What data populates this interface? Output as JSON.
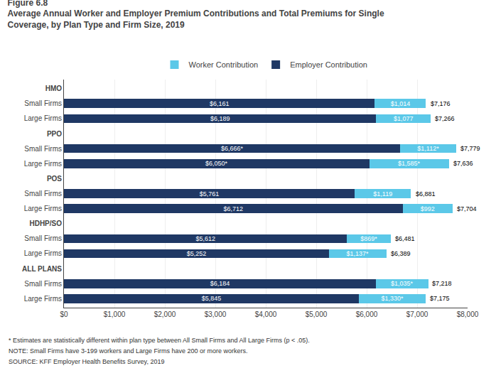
{
  "chart_data": {
    "type": "bar",
    "orientation": "horizontal",
    "stacked": true,
    "title": "Figure 6.8",
    "subtitle": "Average Annual Worker and Employer Premium Contributions and Total Premiums for Single\nCoverage, by Plan Type and Firm Size, 2019",
    "categories": [
      "HMO",
      "Small Firms",
      "Large Firms",
      "PPO",
      "Small Firms",
      "Large Firms",
      "POS",
      "Small Firms",
      "Large Firms",
      "HDHP/SO",
      "Small Firms",
      "Large Firms",
      "ALL PLANS",
      "Small Firms",
      "Large Firms"
    ],
    "series": [
      {
        "name": "Employer Contribution",
        "color": "#1F3864",
        "values": [
          null,
          6161,
          6189,
          null,
          6666,
          6050,
          null,
          5761,
          6712,
          null,
          5612,
          5252,
          null,
          6184,
          5845
        ],
        "value_labels": [
          null,
          "$6,161",
          "$6,189",
          null,
          "$6,666*",
          "$6,050*",
          null,
          "$5,761",
          "$6,712",
          null,
          "$5,612",
          "$5,252",
          null,
          "$6,184",
          "$5,845"
        ]
      },
      {
        "name": "Worker Contribution",
        "color": "#5BC8E8",
        "values": [
          null,
          1014,
          1077,
          null,
          1112,
          1585,
          null,
          1119,
          992,
          null,
          869,
          1137,
          null,
          1035,
          1330
        ],
        "value_labels": [
          null,
          "$1,014",
          "$1,077",
          null,
          "$1,112*",
          "$1,585*",
          null,
          "$1,119",
          "$992",
          null,
          "$869*",
          "$1,137*",
          null,
          "$1,035*",
          "$1,330*"
        ]
      }
    ],
    "totals": [
      null,
      7176,
      7266,
      null,
      7779,
      7636,
      null,
      6881,
      7704,
      null,
      6481,
      6389,
      null,
      7218,
      7175
    ],
    "total_labels": [
      null,
      "$7,176",
      "$7,266",
      null,
      "$7,779",
      "$7,636",
      null,
      "$6,881",
      "$7,704",
      null,
      "$6,481",
      "$6,389",
      null,
      "$7,218",
      "$7,175"
    ],
    "xlim": [
      0,
      8000
    ],
    "xticks": [
      {
        "value": 0,
        "label": "$0"
      },
      {
        "value": 1000,
        "label": "$1,000"
      },
      {
        "value": 2000,
        "label": "$2,000"
      },
      {
        "value": 3000,
        "label": "$3,000"
      },
      {
        "value": 4000,
        "label": "$4,000"
      },
      {
        "value": 5000,
        "label": "$5,000"
      },
      {
        "value": 6000,
        "label": "$6,000"
      },
      {
        "value": 7000,
        "label": "$7,000"
      },
      {
        "value": 8000,
        "label": "$8,000"
      }
    ],
    "grid": true,
    "legend": "top",
    "data_labels": true,
    "annotations": [
      "* Estimates are statistically different within plan type between All Small Firms and All Large Firms (p < .05).",
      "NOTE: Small Firms have 3-199 workers and Large Firms have 200 or more workers.",
      "SOURCE: KFF Employer Health Benefits Survey, 2019"
    ]
  }
}
